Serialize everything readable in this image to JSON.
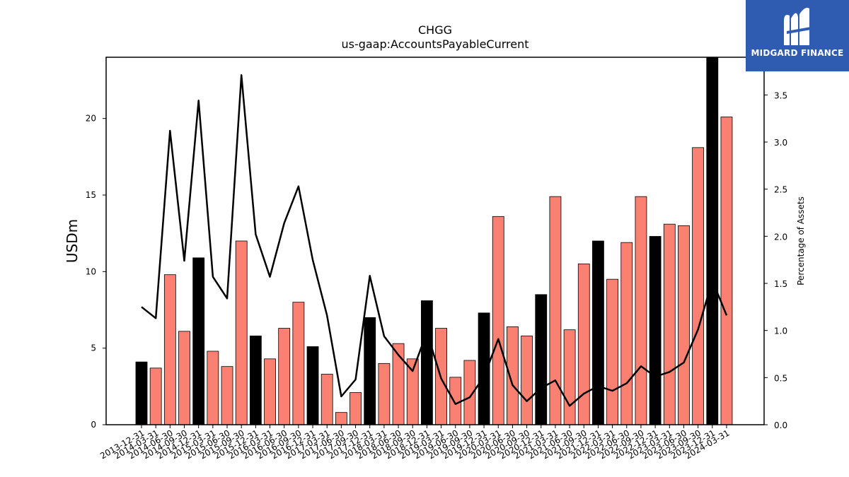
{
  "logo": {
    "brand": "MIDGARD FINANCE",
    "icon": "midgard-logo-icon"
  },
  "colors": {
    "bar_regular": "#fa8072",
    "bar_highlight": "#000000",
    "line": "#000000",
    "logo_bg": "#2f5bb0"
  },
  "chart_data": {
    "type": "bar",
    "title": "CHGG",
    "subtitle": "us-gaap:AccountsPayableCurrent",
    "ylabel": "USDm",
    "y2label": "Percentage of Assets",
    "ylim": [
      0,
      24
    ],
    "y2lim": [
      0,
      3.9
    ],
    "yticks": [
      0,
      5,
      10,
      15,
      20
    ],
    "y2ticks": [
      0.0,
      0.5,
      1.0,
      1.5,
      2.0,
      2.5,
      3.0,
      3.5
    ],
    "categories": [
      "2013-12-31",
      "2014-03-31",
      "2014-06-30",
      "2014-09-30",
      "2014-12-31",
      "2015-03-31",
      "2015-06-30",
      "2015-09-30",
      "2015-12-31",
      "2016-03-31",
      "2016-06-30",
      "2016-09-30",
      "2016-12-31",
      "2017-03-31",
      "2017-06-30",
      "2017-09-30",
      "2017-12-31",
      "2018-03-31",
      "2018-06-30",
      "2018-09-30",
      "2018-12-31",
      "2019-03-31",
      "2019-06-30",
      "2019-09-30",
      "2019-12-31",
      "2020-03-31",
      "2020-06-30",
      "2020-09-30",
      "2020-12-31",
      "2021-03-31",
      "2021-06-30",
      "2021-09-30",
      "2021-12-31",
      "2022-03-31",
      "2022-06-30",
      "2022-09-30",
      "2022-12-31",
      "2023-03-31",
      "2023-06-30",
      "2023-09-30",
      "2023-12-31",
      "2024-03-31"
    ],
    "series": [
      {
        "type": "bar",
        "values": [
          4.1,
          3.7,
          9.8,
          6.1,
          10.9,
          4.8,
          3.8,
          12.0,
          5.8,
          4.3,
          6.3,
          8.0,
          5.1,
          3.3,
          0.8,
          2.1,
          7.0,
          4.0,
          5.3,
          4.3,
          8.1,
          6.3,
          3.1,
          4.2,
          7.3,
          13.6,
          6.4,
          5.8,
          8.5,
          14.9,
          6.2,
          10.5,
          12.0,
          9.5,
          11.9,
          14.9,
          12.3,
          13.1,
          13.0,
          18.1,
          24.0,
          20.1
        ],
        "highlight": [
          true,
          false,
          false,
          false,
          true,
          false,
          false,
          false,
          true,
          false,
          false,
          false,
          true,
          false,
          false,
          false,
          true,
          false,
          false,
          false,
          true,
          false,
          false,
          false,
          true,
          false,
          false,
          false,
          true,
          false,
          false,
          false,
          true,
          false,
          false,
          false,
          true,
          false,
          false,
          false,
          true,
          false
        ]
      },
      {
        "type": "line",
        "axis": "right",
        "values": [
          1.25,
          1.13,
          3.12,
          1.74,
          3.44,
          1.57,
          1.34,
          3.71,
          2.02,
          1.57,
          2.14,
          2.53,
          1.75,
          1.16,
          0.3,
          0.48,
          1.58,
          0.94,
          0.74,
          0.57,
          0.98,
          0.49,
          0.22,
          0.29,
          0.51,
          0.91,
          0.42,
          0.25,
          0.39,
          0.47,
          0.2,
          0.33,
          0.41,
          0.36,
          0.44,
          0.62,
          0.51,
          0.56,
          0.66,
          1.01,
          1.53,
          1.16
        ]
      }
    ]
  }
}
